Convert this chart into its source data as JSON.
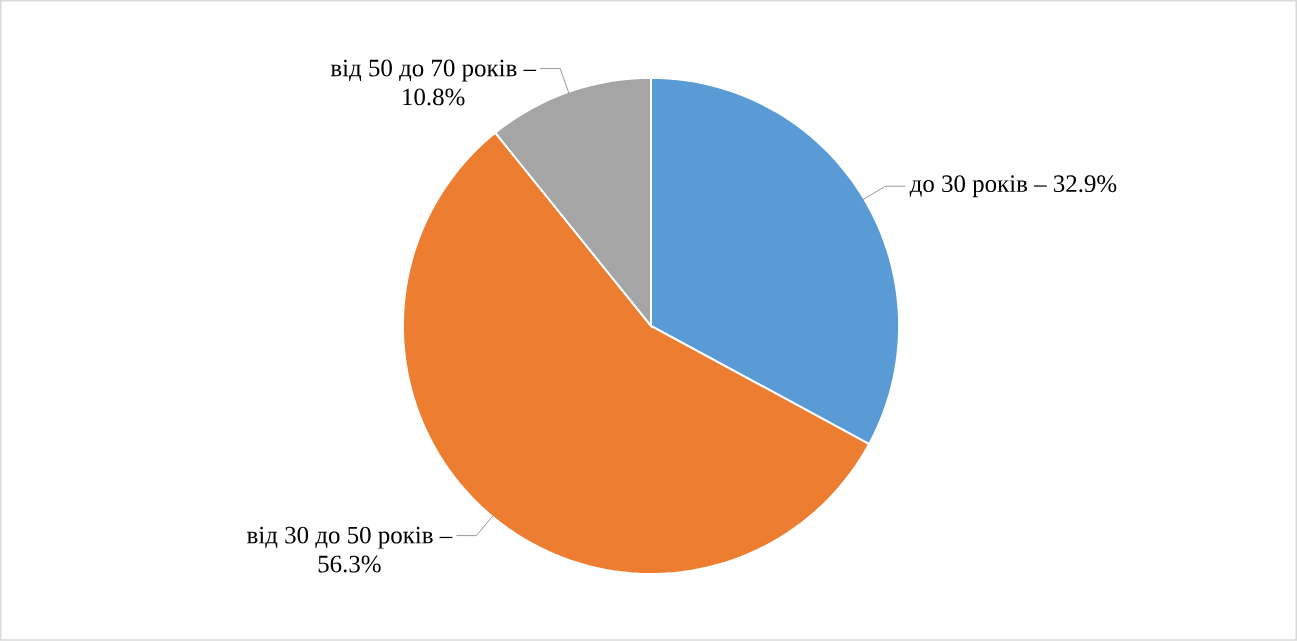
{
  "chart_data": {
    "type": "pie",
    "categories": [
      "до 30 років –",
      "від 30 до 50 років –",
      "від 50 до 70 років –"
    ],
    "values": [
      32.9,
      56.3,
      10.8
    ],
    "colors": [
      "#5b9bd5",
      "#ed7d31",
      "#a5a5a5"
    ],
    "value_labels": [
      "32.9%",
      "56.3%",
      "10.8%"
    ]
  }
}
